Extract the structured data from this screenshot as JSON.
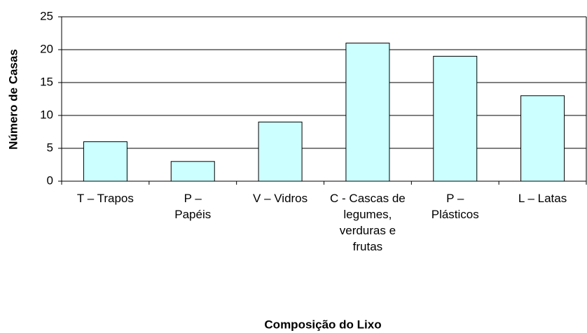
{
  "chart_data": {
    "type": "bar",
    "categories": [
      "T – Trapos",
      "P – Papéis",
      "V – Vidros",
      "C - Cascas de legumes, verduras e frutas",
      "P – Plásticos",
      "L – Latas"
    ],
    "values": [
      6,
      3,
      9,
      21,
      19,
      13
    ],
    "color": "#ccffff",
    "ylim": [
      0,
      25
    ],
    "yticks": [
      0,
      5,
      10,
      15,
      20,
      25
    ],
    "grid": true,
    "y_label": "Número de Casas",
    "x_label": "Composição do Lixo"
  }
}
